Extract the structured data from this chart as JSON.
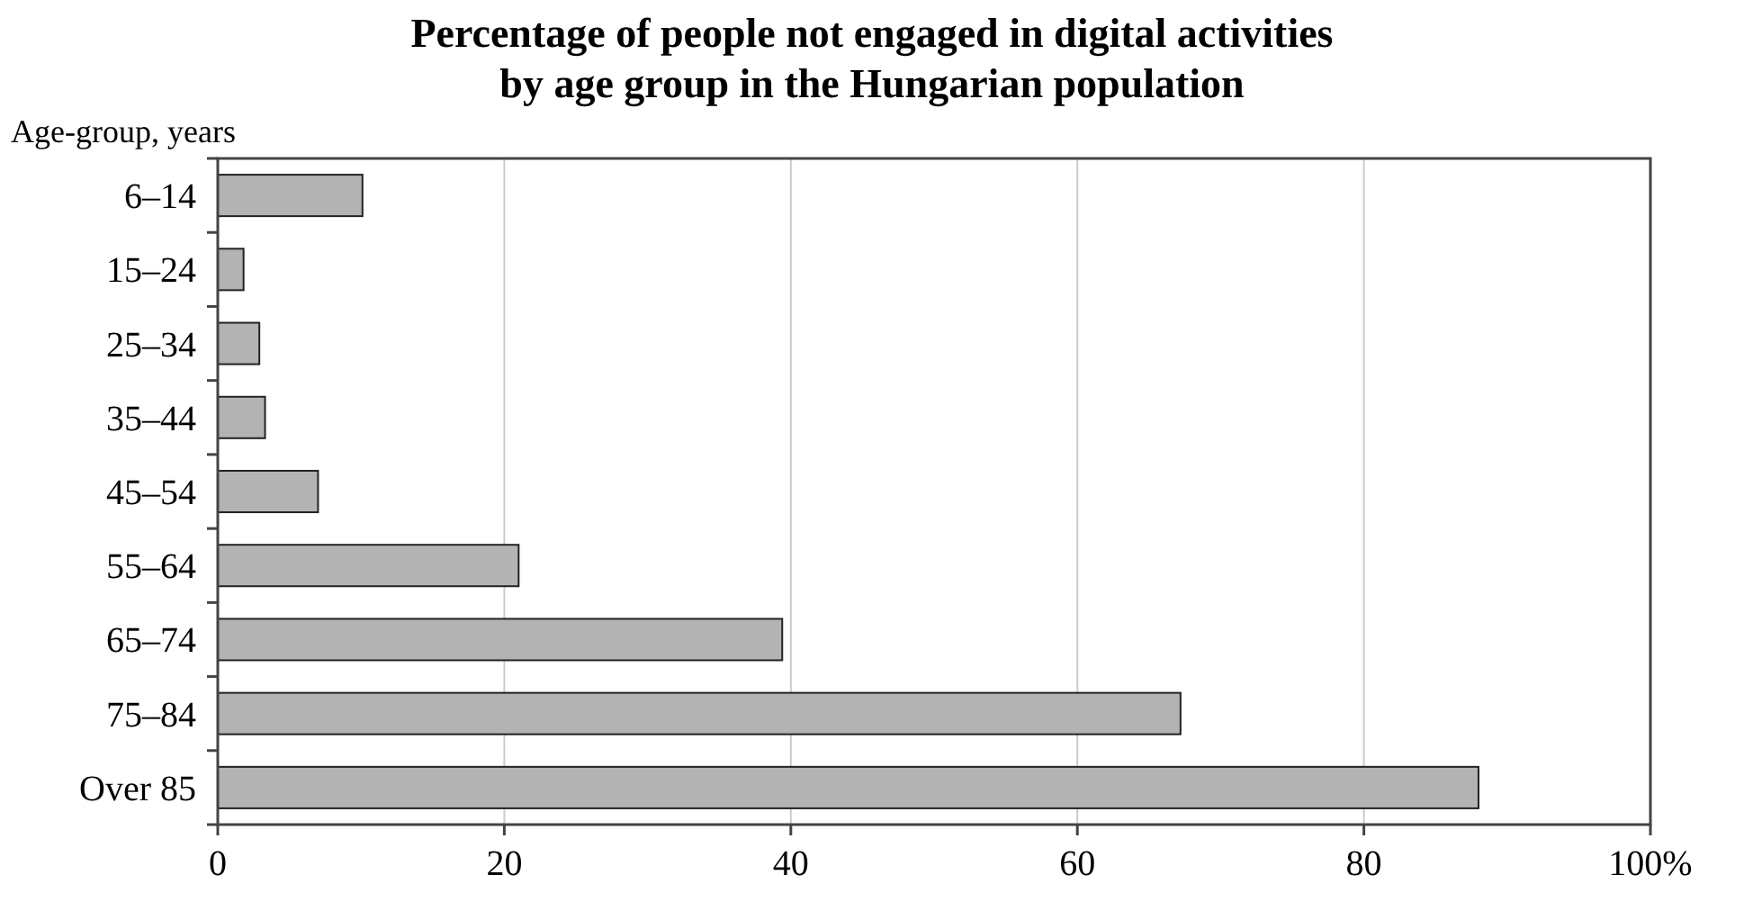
{
  "chart_data": {
    "type": "bar",
    "orientation": "horizontal",
    "title": "Percentage of people not engaged in digital activities\nby age group in the Hungarian population",
    "ylabel": "Age-group, years",
    "categories": [
      "6–14",
      "15–24",
      "25–34",
      "35–44",
      "45–54",
      "55–64",
      "65–74",
      "75–84",
      "Over 85"
    ],
    "values": [
      10.1,
      1.8,
      2.9,
      3.3,
      7.0,
      21,
      39.4,
      67.2,
      88
    ],
    "color": "#b3b3b3",
    "xlim": [
      0,
      100
    ],
    "xticks": [
      0,
      20,
      40,
      60,
      80,
      {
        "value": 100,
        "label": "100%"
      }
    ],
    "grid": "x"
  }
}
